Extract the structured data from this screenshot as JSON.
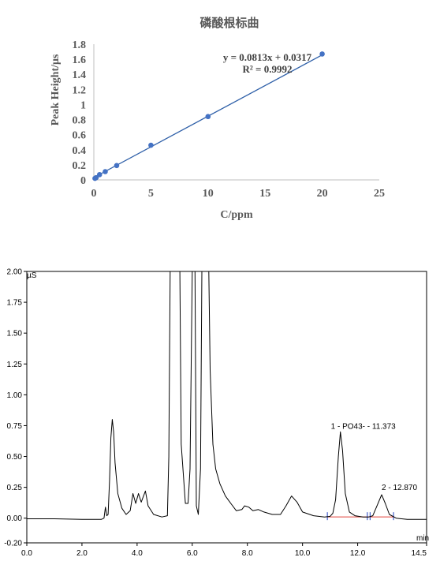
{
  "chart_data": [
    {
      "type": "scatter",
      "title": "磷酸根标曲",
      "xlabel": "C/ppm",
      "ylabel": "Peak Height/μs",
      "xlim": [
        0,
        25
      ],
      "ylim": [
        0,
        1.8
      ],
      "x_ticks": [
        "0",
        "5",
        "10",
        "15",
        "20",
        "25"
      ],
      "y_ticks": [
        "0",
        "0.2",
        "0.4",
        "0.6",
        "0.8",
        "1",
        "1.2",
        "1.4",
        "1.6",
        "1.8"
      ],
      "series": [
        {
          "points": [
            {
              "x": 0.1,
              "y": 0.02
            },
            {
              "x": 0.2,
              "y": 0.03
            },
            {
              "x": 0.5,
              "y": 0.07
            },
            {
              "x": 1,
              "y": 0.11
            },
            {
              "x": 2,
              "y": 0.19
            },
            {
              "x": 5,
              "y": 0.46
            },
            {
              "x": 10,
              "y": 0.84
            },
            {
              "x": 20,
              "y": 1.67
            }
          ]
        }
      ],
      "trendline": {
        "slope": 0.0813,
        "intercept": 0.0317
      },
      "equation": "y = 0.0813x + 0.0317",
      "r_squared": "R² = 0.9992",
      "grid": false,
      "colors": {
        "marker": "#4472c4",
        "trendline": "#2e5fa8",
        "axis": "#bfbfbf"
      }
    },
    {
      "type": "line",
      "ylabel": "µS",
      "xlabel": "min",
      "xlim": [
        0,
        14.5
      ],
      "ylim": [
        -0.2,
        2.0
      ],
      "x_ticks": [
        "0.0",
        "2.0",
        "4.0",
        "6.0",
        "8.0",
        "10.0",
        "12.0",
        "14.5"
      ],
      "y_ticks": [
        "-0.20",
        "0.00",
        "0.25",
        "0.50",
        "0.75",
        "1.00",
        "1.25",
        "1.50",
        "1.75",
        "2.00"
      ],
      "series": [
        {
          "points": [
            [
              0.0,
              -0.005
            ],
            [
              1.0,
              -0.005
            ],
            [
              2.0,
              -0.01
            ],
            [
              2.7,
              -0.01
            ],
            [
              2.8,
              0.0
            ],
            [
              2.85,
              0.09
            ],
            [
              2.9,
              0.02
            ],
            [
              2.95,
              0.03
            ],
            [
              3.0,
              0.3
            ],
            [
              3.05,
              0.65
            ],
            [
              3.1,
              0.8
            ],
            [
              3.15,
              0.7
            ],
            [
              3.2,
              0.45
            ],
            [
              3.3,
              0.2
            ],
            [
              3.45,
              0.08
            ],
            [
              3.6,
              0.03
            ],
            [
              3.75,
              0.06
            ],
            [
              3.85,
              0.2
            ],
            [
              3.95,
              0.12
            ],
            [
              4.05,
              0.2
            ],
            [
              4.15,
              0.13
            ],
            [
              4.3,
              0.22
            ],
            [
              4.4,
              0.1
            ],
            [
              4.6,
              0.03
            ],
            [
              4.9,
              0.01
            ],
            [
              5.1,
              0.02
            ],
            [
              5.15,
              0.5
            ],
            [
              5.2,
              2.0
            ],
            [
              5.55,
              2.0
            ],
            [
              5.6,
              0.6
            ],
            [
              5.75,
              0.12
            ],
            [
              5.85,
              0.12
            ],
            [
              5.92,
              0.4
            ],
            [
              6.0,
              2.0
            ],
            [
              6.1,
              2.0
            ],
            [
              6.15,
              0.1
            ],
            [
              6.22,
              0.03
            ],
            [
              6.3,
              0.4
            ],
            [
              6.35,
              2.0
            ],
            [
              6.6,
              2.0
            ],
            [
              6.65,
              1.2
            ],
            [
              6.75,
              0.6
            ],
            [
              6.85,
              0.4
            ],
            [
              7.0,
              0.28
            ],
            [
              7.2,
              0.18
            ],
            [
              7.4,
              0.12
            ],
            [
              7.6,
              0.06
            ],
            [
              7.8,
              0.07
            ],
            [
              7.9,
              0.1
            ],
            [
              8.05,
              0.09
            ],
            [
              8.2,
              0.06
            ],
            [
              8.4,
              0.07
            ],
            [
              8.6,
              0.05
            ],
            [
              8.9,
              0.03
            ],
            [
              9.2,
              0.03
            ],
            [
              9.4,
              0.1
            ],
            [
              9.6,
              0.18
            ],
            [
              9.8,
              0.13
            ],
            [
              10.0,
              0.05
            ],
            [
              10.4,
              0.02
            ],
            [
              10.8,
              0.01
            ],
            [
              11.0,
              0.015
            ],
            [
              11.1,
              0.04
            ],
            [
              11.2,
              0.15
            ],
            [
              11.3,
              0.5
            ],
            [
              11.373,
              0.7
            ],
            [
              11.45,
              0.55
            ],
            [
              11.55,
              0.2
            ],
            [
              11.7,
              0.05
            ],
            [
              11.9,
              0.02
            ],
            [
              12.2,
              0.01
            ],
            [
              12.4,
              0.01
            ],
            [
              12.55,
              0.02
            ],
            [
              12.7,
              0.1
            ],
            [
              12.87,
              0.19
            ],
            [
              13.0,
              0.12
            ],
            [
              13.15,
              0.03
            ],
            [
              13.4,
              0.0
            ],
            [
              13.8,
              -0.01
            ],
            [
              14.2,
              -0.01
            ],
            [
              14.5,
              -0.01
            ]
          ]
        }
      ],
      "baseline": {
        "x0": 10.9,
        "x1": 13.3,
        "y": 0.01
      },
      "annotations": [
        {
          "text": "1 - PO43- - 11.373",
          "x": 11.373,
          "y": 0.7
        },
        {
          "text": "2 - 12.870",
          "x": 12.87,
          "y": 0.19
        }
      ],
      "colors": {
        "trace": "#000000",
        "baseline": "#e0403a",
        "markers": "#1f3fbf"
      }
    }
  ]
}
